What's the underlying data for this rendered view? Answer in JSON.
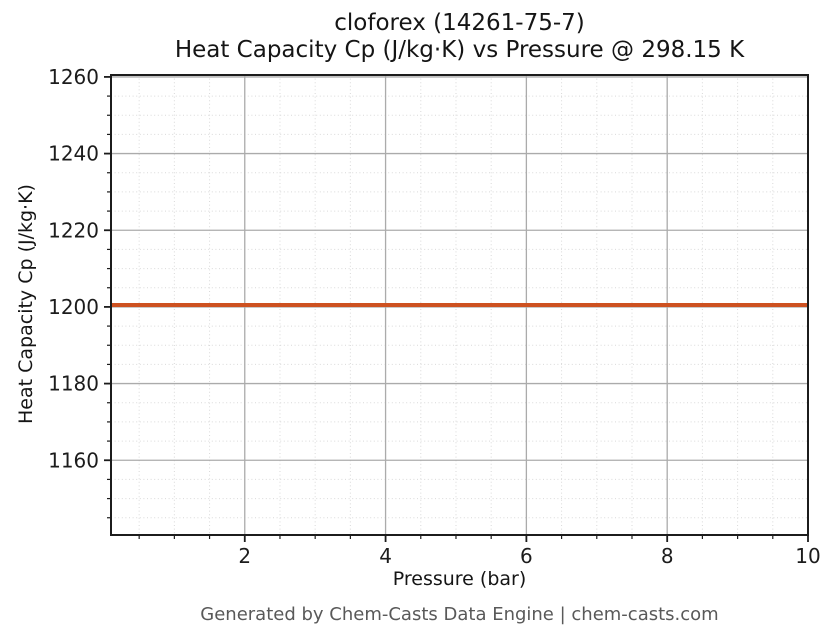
{
  "chart_data": {
    "type": "line",
    "title_line1": "cloforex (14261-75-7)",
    "title_line2": "Heat Capacity Cp (J/kg·K) vs Pressure @ 298.15 K",
    "xlabel": "Pressure (bar)",
    "ylabel": "Heat Capacity Cp (J/kg·K)",
    "footer": "Generated by Chem-Casts Data Engine | chem-casts.com",
    "substance": "cloforex",
    "cas_number": "14261-75-7",
    "temperature_K": "298.15",
    "series": [
      {
        "name": "Heat Capacity Cp",
        "x": [
          0.1,
          10
        ],
        "y": [
          1200.5,
          1200.5
        ],
        "color": "#cd5120",
        "linewidth": 4
      }
    ],
    "xlim": [
      0.1,
      10
    ],
    "ylim": [
      1140.5,
      1260.5
    ],
    "x_major_ticks": [
      2,
      4,
      6,
      8,
      10
    ],
    "x_minor_step": 0.5,
    "y_major_ticks": [
      1160,
      1180,
      1200,
      1220,
      1240,
      1260
    ],
    "y_minor_step": 5,
    "grid": {
      "major_color": "#ababab",
      "minor_color": "#d9d9d9",
      "minor_style": "dotted"
    },
    "axis_color": "#1c1c1c",
    "tick_label_size": 20
  }
}
